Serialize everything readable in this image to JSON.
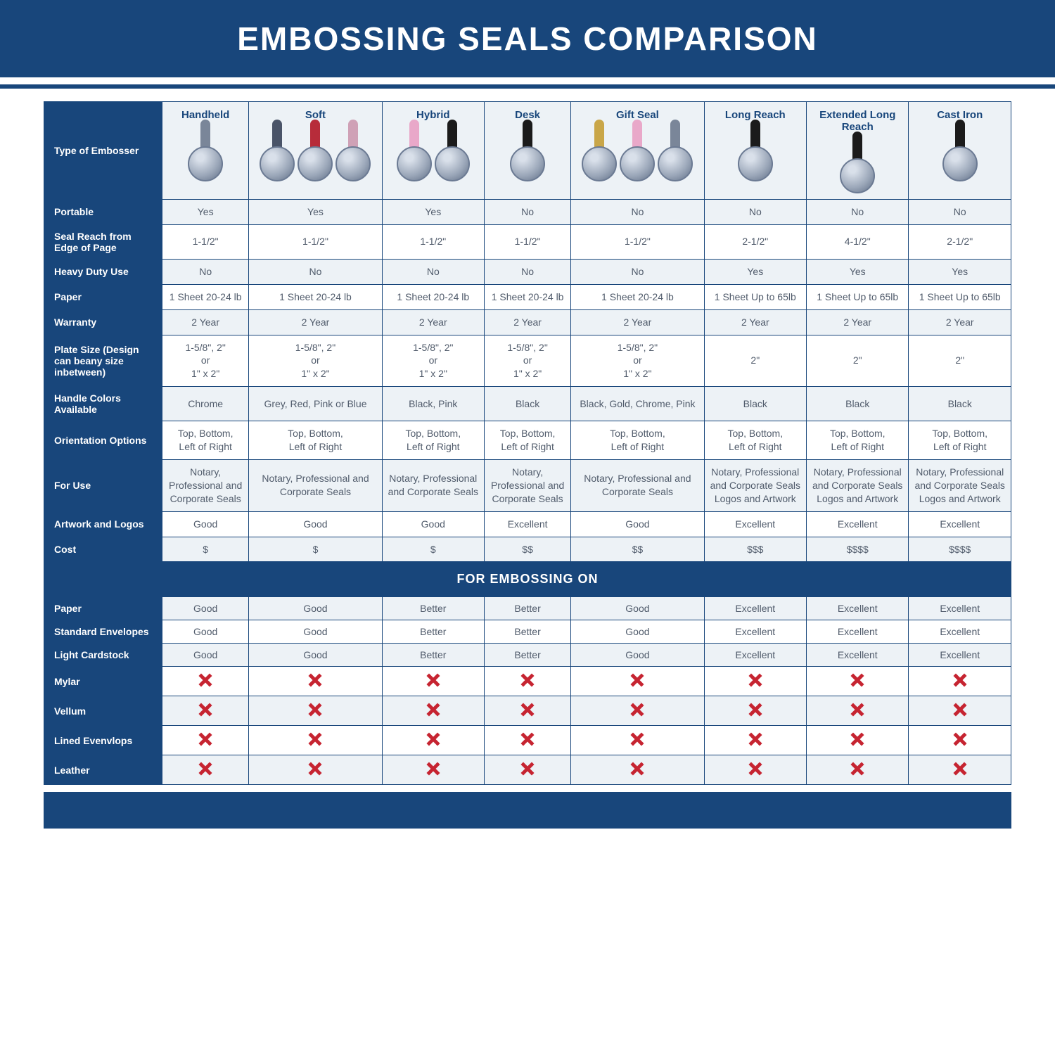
{
  "title": "EMBOSSING SEALS COMPARISON",
  "colors": {
    "primary": "#18467b",
    "alt_row": "#edf2f6",
    "text": "#505b6b",
    "x_mark": "#c62431",
    "white": "#ffffff"
  },
  "columns": [
    {
      "label": "Handheld",
      "handle_colors": [
        "#7a8699"
      ]
    },
    {
      "label": "Soft",
      "handle_colors": [
        "#4a5468",
        "#b72c3a",
        "#cfa1b6"
      ]
    },
    {
      "label": "Hybrid",
      "handle_colors": [
        "#e9a8c9",
        "#1b1b1b"
      ]
    },
    {
      "label": "Desk",
      "handle_colors": [
        "#1b1b1b"
      ]
    },
    {
      "label": "Gift Seal",
      "handle_colors": [
        "#c9a648",
        "#e9a8c9",
        "#7a8699"
      ]
    },
    {
      "label": "Long Reach",
      "handle_colors": [
        "#1b1b1b"
      ]
    },
    {
      "label": "Extended Long Reach",
      "handle_colors": [
        "#1b1b1b"
      ]
    },
    {
      "label": "Cast Iron",
      "handle_colors": [
        "#1b1b1b"
      ]
    }
  ],
  "main_rows": [
    {
      "label": "Type of Embosser",
      "kind": "header"
    },
    {
      "label": "Portable",
      "cells": [
        "Yes",
        "Yes",
        "Yes",
        "No",
        "No",
        "No",
        "No",
        "No"
      ]
    },
    {
      "label": "Seal Reach from Edge of Page",
      "cells": [
        "1-1/2\"",
        "1-1/2\"",
        "1-1/2\"",
        "1-1/2\"",
        "1-1/2\"",
        "2-1/2\"",
        "4-1/2\"",
        "2-1/2\""
      ]
    },
    {
      "label": "Heavy Duty Use",
      "cells": [
        "No",
        "No",
        "No",
        "No",
        "No",
        "Yes",
        "Yes",
        "Yes"
      ]
    },
    {
      "label": "Paper",
      "cells": [
        "1 Sheet 20-24 lb",
        "1 Sheet 20-24 lb",
        "1 Sheet 20-24 lb",
        "1 Sheet 20-24 lb",
        "1 Sheet 20-24 lb",
        "1 Sheet Up to 65lb",
        "1 Sheet Up to 65lb",
        "1 Sheet Up to 65lb"
      ]
    },
    {
      "label": "Warranty",
      "cells": [
        "2 Year",
        "2 Year",
        "2 Year",
        "2 Year",
        "2 Year",
        "2 Year",
        "2 Year",
        "2 Year"
      ]
    },
    {
      "label": "Plate Size (Design can beany size inbetween)",
      "cells": [
        "1-5/8\", 2\"\nor\n1\" x 2\"",
        "1-5/8\", 2\"\nor\n1\" x 2\"",
        "1-5/8\", 2\"\nor\n1\" x 2\"",
        "1-5/8\", 2\"\nor\n1\" x 2\"",
        "1-5/8\", 2\"\nor\n1\" x 2\"",
        "2\"",
        "2\"",
        "2\""
      ]
    },
    {
      "label": "Handle Colors Available",
      "cells": [
        "Chrome",
        "Grey, Red, Pink or Blue",
        "Black, Pink",
        "Black",
        "Black, Gold, Chrome, Pink",
        "Black",
        "Black",
        "Black"
      ]
    },
    {
      "label": "Orientation Options",
      "cells": [
        "Top, Bottom,\nLeft of Right",
        "Top, Bottom,\nLeft of Right",
        "Top, Bottom,\nLeft of Right",
        "Top, Bottom,\nLeft of Right",
        "Top, Bottom,\nLeft of Right",
        "Top, Bottom,\nLeft of Right",
        "Top, Bottom,\nLeft of Right",
        "Top, Bottom,\nLeft of Right"
      ]
    },
    {
      "label": "For Use",
      "cells": [
        "Notary, Professional and Corporate Seals",
        "Notary, Professional and Corporate Seals",
        "Notary, Professional and Corporate Seals",
        "Notary, Professional and Corporate Seals",
        "Notary, Professional and Corporate Seals",
        "Notary, Professional and Corporate Seals Logos and Artwork",
        "Notary, Professional and Corporate Seals Logos and Artwork",
        "Notary, Professional and Corporate Seals Logos and Artwork"
      ]
    },
    {
      "label": "Artwork and Logos",
      "cells": [
        "Good",
        "Good",
        "Good",
        "Excellent",
        "Good",
        "Excellent",
        "Excellent",
        "Excellent"
      ]
    },
    {
      "label": "Cost",
      "cells": [
        "$",
        "$",
        "$",
        "$$",
        "$$",
        "$$$",
        "$$$$",
        "$$$$"
      ]
    }
  ],
  "section_label": "FOR EMBOSSING ON",
  "embossing_rows": [
    {
      "label": "Paper",
      "cells": [
        "Good",
        "Good",
        "Better",
        "Better",
        "Good",
        "Excellent",
        "Excellent",
        "Excellent"
      ]
    },
    {
      "label": "Standard Envelopes",
      "cells": [
        "Good",
        "Good",
        "Better",
        "Better",
        "Good",
        "Excellent",
        "Excellent",
        "Excellent"
      ]
    },
    {
      "label": "Light Cardstock",
      "cells": [
        "Good",
        "Good",
        "Better",
        "Better",
        "Good",
        "Excellent",
        "Excellent",
        "Excellent"
      ]
    },
    {
      "label": "Mylar",
      "cells": [
        "X",
        "X",
        "X",
        "X",
        "X",
        "X",
        "X",
        "X"
      ]
    },
    {
      "label": "Vellum",
      "cells": [
        "X",
        "X",
        "X",
        "X",
        "X",
        "X",
        "X",
        "X"
      ]
    },
    {
      "label": "Lined Evenvlops",
      "cells": [
        "X",
        "X",
        "X",
        "X",
        "X",
        "X",
        "X",
        "X"
      ]
    },
    {
      "label": "Leather",
      "cells": [
        "X",
        "X",
        "X",
        "X",
        "X",
        "X",
        "X",
        "X"
      ]
    }
  ]
}
